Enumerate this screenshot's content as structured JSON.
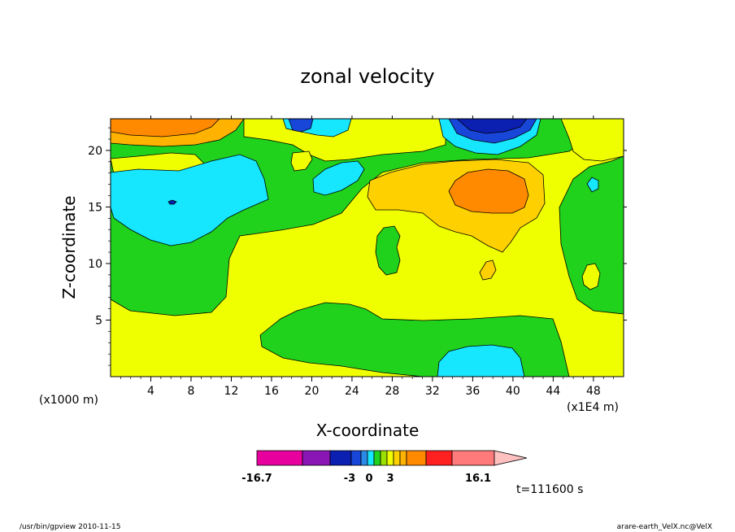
{
  "chart_data": {
    "type": "heatmap",
    "title": "zonal velocity",
    "xlabel": "X-coordinate",
    "ylabel": "Z-coordinate",
    "x_scale_note": "(x1E4 m)",
    "y_scale_note": "(x1000 m)",
    "xlim": [
      0,
      51
    ],
    "ylim": [
      0,
      22.8
    ],
    "x_ticks": [
      4,
      8,
      12,
      16,
      20,
      24,
      28,
      32,
      36,
      40,
      44,
      48
    ],
    "y_ticks": [
      5,
      10,
      15,
      20
    ],
    "colorbar": {
      "colors": [
        "#e8009f",
        "#8a16b5",
        "#0b1fb0",
        "#1746d9",
        "#2a8ae6",
        "#17e6ff",
        "#20d21c",
        "#9be000",
        "#f0ff00",
        "#ffd000",
        "#ffb300",
        "#ff8a00",
        "#ff2020",
        "#ff7a7a",
        "#ffc0c0"
      ],
      "tick_labels": [
        "-16.7",
        "-3",
        "0",
        "3",
        "16.1"
      ]
    },
    "time_label": "t=111600 s",
    "notable_regions": [
      {
        "value_band": "5 to 10",
        "approx_x": [
          0,
          8
        ],
        "approx_z": [
          20.5,
          22.8
        ]
      },
      {
        "value_band": "-10 to -5",
        "approx_x": [
          33,
          42
        ],
        "approx_z": [
          21,
          22.8
        ]
      },
      {
        "value_band": "-5 to -3",
        "approx_x": [
          0,
          15
        ],
        "approx_z": [
          11.8,
          18
        ]
      },
      {
        "value_band": "5 to 10",
        "approx_x": [
          34,
          42
        ],
        "approx_z": [
          14.5,
          18.5
        ]
      },
      {
        "value_band": "-5 to -3",
        "approx_x": [
          32,
          41
        ],
        "approx_z": [
          0,
          2.6
        ]
      },
      {
        "value_band": "0 to 3",
        "approx_x": [
          0,
          51
        ],
        "approx_z": [
          0,
          10
        ]
      }
    ]
  },
  "footer": {
    "left": "/usr/bin/gpview   2010-11-15",
    "right": "arare-earth_VelX.nc@VelX"
  }
}
